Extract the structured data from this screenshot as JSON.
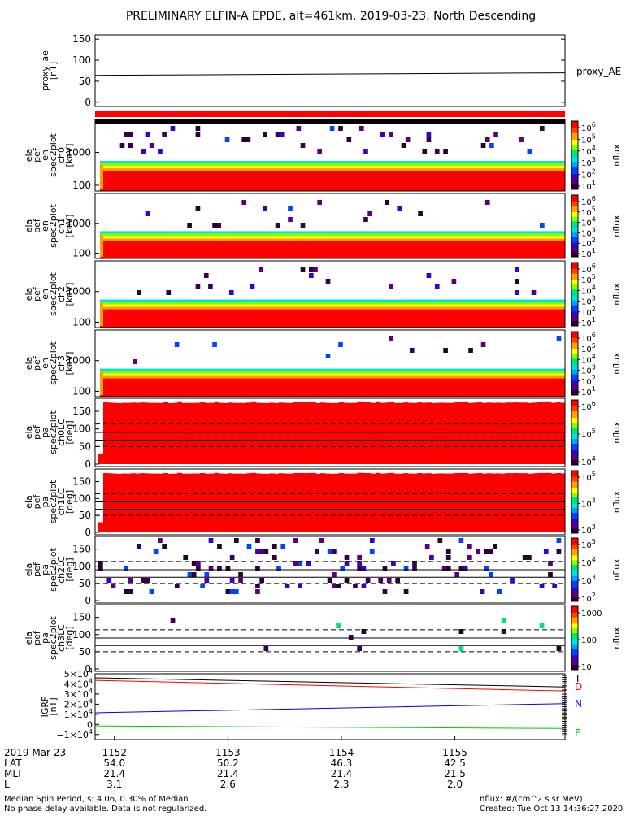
{
  "title": "PRELIMINARY ELFIN-A EPDE, alt=461km, 2019-03-23, North Descending",
  "colors": {
    "black": "#000000",
    "flag_red": "#ff0000",
    "igrf_T": "#000000",
    "igrf_D": "#ff0000",
    "igrf_N": "#0000ff",
    "igrf_E": "#00cc00",
    "rainbow": [
      "#2a0030",
      "#5a007a",
      "#3a00c8",
      "#0044ff",
      "#00a0ff",
      "#00e0e0",
      "#00e080",
      "#80ff00",
      "#ffff00",
      "#ffa000",
      "#ff4000",
      "#ff0000"
    ]
  },
  "panels": [
    {
      "id": "proxy_ae",
      "type": "line",
      "ylabel": [
        "proxy_ae",
        "[nT]"
      ],
      "ticks": [
        "150",
        "100",
        "50",
        "0"
      ],
      "right_label": "proxy_AE",
      "data": {
        "x": [
          1151.83,
          1155.97
        ],
        "y": [
          64,
          70
        ]
      }
    },
    {
      "id": "flag_bar",
      "type": "flag_bar"
    },
    {
      "id": "ch0",
      "type": "energy",
      "ylabel": [
        "ela",
        "pef",
        "en",
        "spec2plot",
        "ch0",
        "[keV]"
      ],
      "ticks": [
        "1000",
        "100"
      ],
      "colorbar": {
        "labels": [
          "10^6",
          "10^5",
          "10^4",
          "10^3",
          "10^2",
          "10^1"
        ],
        "title": "nflux"
      },
      "noise_seed": 11,
      "noise_density": 0.3
    },
    {
      "id": "ch1",
      "type": "energy",
      "ylabel": [
        "ela",
        "pef",
        "en",
        "spec2plot",
        "ch1",
        "[keV]"
      ],
      "ticks": [
        "1000",
        "100"
      ],
      "colorbar": {
        "labels": [
          "10^6",
          "10^5",
          "10^4",
          "10^3",
          "10^2",
          "10^1"
        ],
        "title": "nflux"
      },
      "noise_seed": 22,
      "noise_density": 0.1
    },
    {
      "id": "ch2",
      "type": "energy",
      "ylabel": [
        "ela",
        "pef",
        "en",
        "spec2plot",
        "ch2",
        "[keV]"
      ],
      "ticks": [
        "1000",
        "100"
      ],
      "colorbar": {
        "labels": [
          "10^6",
          "10^5",
          "10^4",
          "10^3",
          "10^2",
          "10^1"
        ],
        "title": "nflux"
      },
      "noise_seed": 33,
      "noise_density": 0.18
    },
    {
      "id": "ch3",
      "type": "energy",
      "ylabel": [
        "ela",
        "pef",
        "en",
        "spec2plot",
        "ch3",
        "[keV]"
      ],
      "ticks": [
        "1000",
        "100"
      ],
      "colorbar": {
        "labels": [
          "10^6",
          "10^5",
          "10^4",
          "10^3",
          "10^2",
          "10^1"
        ],
        "title": "nflux"
      },
      "noise_seed": 44,
      "noise_density": 0.08
    },
    {
      "id": "ch0LC",
      "type": "pitch",
      "fill": "solid",
      "ylabel": [
        "ela",
        "pef",
        "pa",
        "spec2plot",
        "ch0LC",
        "[deg]"
      ],
      "ticks": [
        "150",
        "100",
        "50",
        "0"
      ],
      "colorbar": {
        "labels": [
          "10^6",
          "10^5",
          "10^4"
        ],
        "title": "nflux"
      }
    },
    {
      "id": "ch1LC",
      "type": "pitch",
      "fill": "solid",
      "ylabel": [
        "ela",
        "pef",
        "pa",
        "spec2plot",
        "ch1LC",
        "[deg]"
      ],
      "ticks": [
        "150",
        "100",
        "50",
        "0"
      ],
      "colorbar": {
        "labels": [
          "10^5",
          "10^4",
          "10^3"
        ],
        "title": "nflux"
      }
    },
    {
      "id": "ch2LC",
      "type": "pitch",
      "fill": "sparse",
      "ylabel": [
        "ela",
        "pef",
        "pa",
        "spec2plot",
        "ch2LC",
        "[deg]"
      ],
      "ticks": [
        "150",
        "100",
        "50",
        "0"
      ],
      "colorbar": {
        "labels": [
          "10^5",
          "10^4",
          "10^3",
          "10^2"
        ],
        "title": "nflux"
      },
      "noise_seed": 55,
      "noise_density": 0.45
    },
    {
      "id": "ch3LC",
      "type": "pitch",
      "fill": "very_sparse",
      "ylabel": [
        "ela",
        "pef",
        "pa",
        "spec2plot",
        "ch3LC",
        "[deg]"
      ],
      "ticks": [
        "150",
        "100",
        "50",
        "0"
      ],
      "colorbar": {
        "labels": [
          "1000",
          "100",
          "10"
        ],
        "title": "nflux"
      },
      "noise_seed": 66,
      "noise_density": 0.04
    },
    {
      "id": "igrf",
      "type": "igrf",
      "ylabel": [
        "IGRF",
        "[nT]"
      ],
      "ticks": [
        "5×10^4",
        "4×10^4",
        "3×10^4",
        "2×10^4",
        "1×10^4",
        "0",
        "−1×10^4"
      ],
      "legend": [
        "T",
        "D",
        "N",
        "E"
      ]
    }
  ],
  "bottom": {
    "date_label": "2019 Mar 23",
    "rows": [
      "LAT",
      "MLT",
      "L"
    ],
    "columns": [
      {
        "time": "1152",
        "LAT": "54.0",
        "MLT": "21.4",
        "L": "3.1"
      },
      {
        "time": "1153",
        "LAT": "50.2",
        "MLT": "21.4",
        "L": "2.6"
      },
      {
        "time": "1154",
        "LAT": "46.3",
        "MLT": "21.4",
        "L": "2.3"
      },
      {
        "time": "1155",
        "LAT": "42.5",
        "MLT": "21.5",
        "L": "2.0"
      }
    ]
  },
  "footer": {
    "left_line1": "Median Spin Period, s: 4.06, 0.30% of Median",
    "left_line2": "No phase delay available. Data is not regularized.",
    "right_line1": "nflux: #/(cm^2 s sr MeV)",
    "right_line2": "Created: Tue Oct 13 14:36:27 2020"
  },
  "chart_data": [
    {
      "type": "line",
      "title": "PRELIMINARY ELFIN-A EPDE, alt=461km, 2019-03-23, North Descending",
      "ylabel": "proxy_ae [nT]",
      "ylim": [
        -10,
        160
      ],
      "series": [
        {
          "name": "proxy_AE",
          "x": [
            1151.83,
            1155.97
          ],
          "values": [
            64,
            70
          ]
        }
      ]
    },
    {
      "type": "line",
      "ylabel": "IGRF [nT]",
      "ylim": [
        -15000,
        50000
      ],
      "series": [
        {
          "name": "T",
          "x": [
            1151.83,
            1155.97
          ],
          "values": [
            46000,
            37000
          ]
        },
        {
          "name": "D",
          "x": [
            1151.83,
            1155.97
          ],
          "values": [
            43500,
            33000
          ]
        },
        {
          "name": "N",
          "x": [
            1151.83,
            1155.97
          ],
          "values": [
            11500,
            20500
          ]
        },
        {
          "name": "E",
          "x": [
            1151.83,
            1155.97
          ],
          "values": [
            -1500,
            -4000
          ]
        }
      ]
    }
  ]
}
